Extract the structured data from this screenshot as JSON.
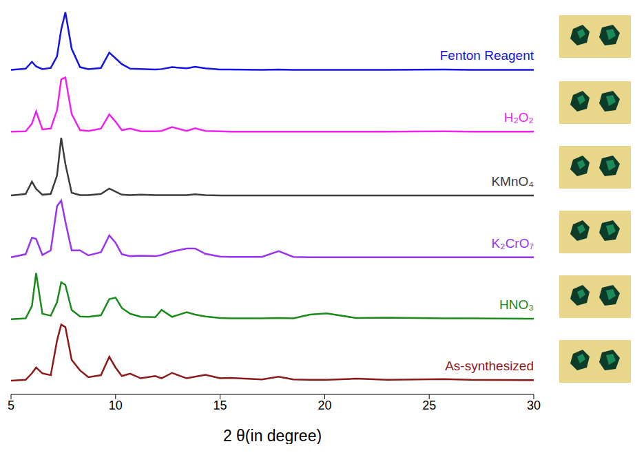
{
  "chart_data": {
    "type": "line",
    "x_label": "2 θ(in degree)",
    "xlim": [
      5,
      30
    ],
    "xticks": [
      5,
      10,
      15,
      20,
      25,
      30
    ],
    "ylim": [
      0,
      100
    ],
    "tick_labels": "x",
    "x": [
      5,
      5.7,
      6.0,
      6.2,
      6.5,
      6.9,
      7.2,
      7.4,
      7.6,
      7.9,
      8.3,
      8.7,
      9.3,
      9.7,
      10.0,
      10.3,
      10.7,
      11.2,
      11.9,
      12.2,
      12.7,
      13.4,
      13.8,
      14.3,
      15.0,
      15.5,
      17.0,
      17.8,
      18.5,
      19.3,
      20.1,
      21.5,
      23.0,
      25.7,
      27.0,
      30.0
    ],
    "series": [
      {
        "name": "Fenton Reagent",
        "color": "#1414e6",
        "values": [
          84.5,
          84.8,
          86.6,
          85.4,
          84.7,
          85.0,
          88,
          95,
          99.5,
          90,
          85.2,
          84.7,
          85,
          89,
          87.5,
          86,
          84.8,
          84.7,
          84.6,
          84.7,
          85.2,
          84.9,
          85.3,
          84.9,
          84.6,
          84.6,
          84.5,
          84.6,
          84.5,
          84.5,
          84.5,
          84.5,
          84.5,
          84.6,
          84.5,
          84.5
        ]
      },
      {
        "name": "H₂O₂",
        "color": "#ee22ee",
        "values": [
          68.4,
          68.5,
          70.5,
          73.7,
          69,
          69.2,
          74,
          82,
          82.5,
          73,
          68.8,
          68.6,
          69.2,
          72.9,
          71,
          68.8,
          69.2,
          68.5,
          68.5,
          68.6,
          69.6,
          68.6,
          69.3,
          68.6,
          68.5,
          68.4,
          68.4,
          68.4,
          68.4,
          68.4,
          68.4,
          68.4,
          68.4,
          68.5,
          68.4,
          68.4
        ]
      },
      {
        "name": "KMnO₄",
        "color": "#3c3c3c",
        "values": [
          51.8,
          52.2,
          55.4,
          53.5,
          52,
          52.2,
          57,
          66.8,
          60,
          52.5,
          51.9,
          51.9,
          52.2,
          53.6,
          52.8,
          52,
          51.9,
          52,
          51.9,
          51.9,
          51.9,
          51.9,
          52.1,
          51.9,
          51.8,
          51.8,
          51.8,
          51.8,
          51.8,
          51.8,
          51.8,
          51.8,
          51.8,
          51.8,
          51.8,
          51.8
        ]
      },
      {
        "name": "K₂CrO₇",
        "color": "#9933ee",
        "values": [
          35.7,
          36.5,
          40.8,
          40.5,
          36.3,
          37.5,
          49,
          50.5,
          45,
          37.5,
          37.5,
          36.2,
          37,
          41.4,
          39.5,
          36.5,
          36,
          36.1,
          36,
          36.3,
          37.2,
          38,
          38,
          36.6,
          35.9,
          35.8,
          35.8,
          37.3,
          35.8,
          35.7,
          35.7,
          35.7,
          35.7,
          35.7,
          35.7,
          35.7
        ]
      },
      {
        "name": "HNO₃",
        "color": "#1a8a1a",
        "values": [
          19.6,
          19.8,
          23,
          31.6,
          21,
          20.5,
          24,
          29.2,
          28.5,
          22,
          20.3,
          20.2,
          20.6,
          24.8,
          25.2,
          22.5,
          21,
          20.2,
          20.1,
          22,
          20.2,
          21.4,
          20.8,
          20.3,
          19.9,
          19.8,
          19.8,
          19.9,
          19.8,
          20.8,
          21.1,
          19.9,
          20,
          19.8,
          19.8,
          19.7
        ]
      },
      {
        "name": "As-synthesized",
        "color": "#8b1a1a",
        "values": [
          3.6,
          3.8,
          5.5,
          7,
          5.5,
          5,
          14,
          18.2,
          17.5,
          9,
          6.25,
          4.5,
          5,
          9.8,
          7,
          4.8,
          5.4,
          4.2,
          4.8,
          4.2,
          5.6,
          4.2,
          4.6,
          5.1,
          4.2,
          4.3,
          3.9,
          4.6,
          3.9,
          3.8,
          3.8,
          4.1,
          3.8,
          4.0,
          3.8,
          3.7
        ]
      }
    ]
  }
}
